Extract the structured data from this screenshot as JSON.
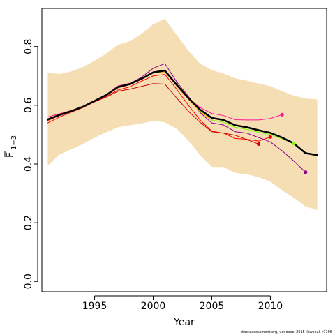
{
  "chart_data": {
    "type": "line",
    "xlabel": "Year",
    "ylabel_main": "F",
    "ylabel_sub": "1−3",
    "xlim": [
      1990.5,
      2014.8
    ],
    "ylim": [
      -0.035,
      0.93
    ],
    "x_ticks": [
      1995,
      2000,
      2005,
      2010
    ],
    "x_tick_labels": [
      "1995",
      "2000",
      "2005",
      "2010"
    ],
    "y_ticks": [
      0.0,
      0.2,
      0.4,
      0.6,
      0.8
    ],
    "y_tick_labels": [
      "0.0",
      "0.2",
      "0.4",
      "0.6",
      "0.8"
    ],
    "grid": false,
    "footnote": "stockassessment.org, vendace_2015_lowseal, r7106",
    "band": {
      "color": "#f5deb3",
      "x": [
        1991,
        1992,
        1993,
        1994,
        1995,
        1996,
        1997,
        1998,
        1999,
        2000,
        2001,
        2002,
        2003,
        2004,
        2005,
        2006,
        2007,
        2008,
        2009,
        2010,
        2011,
        2012,
        2013,
        2014
      ],
      "upper": [
        0.71,
        0.707,
        0.715,
        0.73,
        0.752,
        0.776,
        0.806,
        0.818,
        0.843,
        0.876,
        0.895,
        0.84,
        0.786,
        0.742,
        0.72,
        0.708,
        0.692,
        0.684,
        0.674,
        0.665,
        0.648,
        0.633,
        0.623,
        0.62
      ],
      "lower": [
        0.395,
        0.432,
        0.45,
        0.468,
        0.49,
        0.508,
        0.525,
        0.532,
        0.538,
        0.547,
        0.542,
        0.52,
        0.48,
        0.43,
        0.39,
        0.39,
        0.37,
        0.365,
        0.355,
        0.34,
        0.31,
        0.285,
        0.255,
        0.243
      ]
    },
    "series": [
      {
        "color": "#000000",
        "width": 2.5,
        "x": [
          1991,
          1992,
          1993,
          1994,
          1995,
          1996,
          1997,
          1998,
          1999,
          2000,
          2001,
          2002,
          2003,
          2004,
          2005,
          2006,
          2007,
          2008,
          2009,
          2010,
          2011,
          2012,
          2013,
          2014
        ],
        "y": [
          0.552,
          0.567,
          0.58,
          0.595,
          0.615,
          0.635,
          0.662,
          0.672,
          0.69,
          0.712,
          0.718,
          0.67,
          0.625,
          0.585,
          0.557,
          0.55,
          0.532,
          0.525,
          0.515,
          0.506,
          0.49,
          0.47,
          0.437,
          0.43
        ]
      },
      {
        "color": "#ff0000",
        "width": 1,
        "x": [
          1991,
          1992,
          1993,
          1994,
          1995,
          1996,
          1997,
          1998,
          1999,
          2000,
          2001,
          2002,
          2003,
          2004,
          2005,
          2006,
          2007,
          2008,
          2009,
          2010
        ],
        "y": [
          0.54,
          0.56,
          0.576,
          0.592,
          0.612,
          0.63,
          0.652,
          0.663,
          0.682,
          0.7,
          0.705,
          0.655,
          0.6,
          0.55,
          0.512,
          0.505,
          0.487,
          0.484,
          0.478,
          0.492
        ],
        "end_point": [
          2010,
          0.492
        ]
      },
      {
        "color": "#cd0000",
        "width": 1,
        "x": [
          1991,
          1992,
          1993,
          1994,
          1995,
          1996,
          1997,
          1998,
          1999,
          2000,
          2001,
          2002,
          2003,
          2004,
          2005,
          2006,
          2007,
          2008,
          2009
        ],
        "y": [
          0.548,
          0.565,
          0.578,
          0.594,
          0.612,
          0.628,
          0.648,
          0.655,
          0.664,
          0.674,
          0.672,
          0.625,
          0.58,
          0.542,
          0.51,
          0.505,
          0.498,
          0.483,
          0.468
        ],
        "end_point": [
          2009,
          0.468
        ]
      },
      {
        "color": "#ff1493",
        "width": 1,
        "x": [
          1991,
          1992,
          1993,
          1994,
          1995,
          1996,
          1997,
          1998,
          1999,
          2000,
          2001,
          2002,
          2003,
          2004,
          2005,
          2006,
          2007,
          2008,
          2009,
          2010,
          2011
        ],
        "y": [
          0.56,
          0.571,
          0.582,
          0.596,
          0.616,
          0.637,
          0.666,
          0.675,
          0.692,
          0.714,
          0.72,
          0.672,
          0.626,
          0.592,
          0.572,
          0.565,
          0.551,
          0.55,
          0.55,
          0.555,
          0.568
        ],
        "end_point": [
          2011,
          0.568
        ]
      },
      {
        "color": "#7cfc00",
        "width": 1,
        "x": [
          1991,
          1992,
          1993,
          1994,
          1995,
          1996,
          1997,
          1998,
          1999,
          2000,
          2001,
          2002,
          2003,
          2004,
          2005,
          2006,
          2007,
          2008,
          2009,
          2010,
          2011,
          2012
        ],
        "y": [
          0.553,
          0.567,
          0.58,
          0.595,
          0.615,
          0.635,
          0.662,
          0.672,
          0.69,
          0.712,
          0.717,
          0.668,
          0.622,
          0.58,
          0.55,
          0.542,
          0.525,
          0.518,
          0.508,
          0.5,
          0.486,
          0.47
        ],
        "end_point": [
          2012,
          0.47
        ]
      },
      {
        "color": "#8b008b",
        "width": 1,
        "x": [
          1991,
          1992,
          1993,
          1994,
          1995,
          1996,
          1997,
          1998,
          1999,
          2000,
          2001,
          2002,
          2003,
          2004,
          2005,
          2006,
          2007,
          2008,
          2009,
          2010,
          2011,
          2012,
          2013
        ],
        "y": [
          0.552,
          0.566,
          0.579,
          0.594,
          0.615,
          0.636,
          0.664,
          0.674,
          0.695,
          0.726,
          0.742,
          0.68,
          0.63,
          0.575,
          0.54,
          0.533,
          0.51,
          0.505,
          0.49,
          0.475,
          0.445,
          0.41,
          0.372
        ],
        "end_point": [
          2013,
          0.372
        ]
      },
      {
        "color": "#ffa500",
        "width": 1,
        "x": [
          1991,
          1992,
          1993,
          1994,
          1995,
          1996,
          1997,
          1998,
          1999,
          2000,
          2001,
          2002,
          2003,
          2004,
          2005
        ],
        "y": [
          0.553,
          0.567,
          0.58,
          0.595,
          0.614,
          0.634,
          0.66,
          0.671,
          0.688,
          0.71,
          0.714,
          0.666,
          0.62,
          0.578,
          0.55
        ]
      }
    ]
  }
}
